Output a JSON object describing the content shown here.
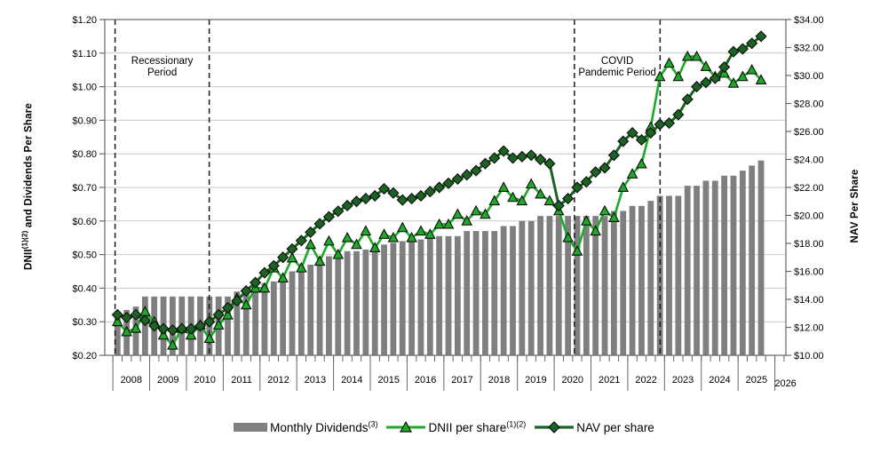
{
  "left_axis": {
    "title_prefix": "DNII",
    "title_sup": "(1)(2)",
    "title_suffix": " and Dividends Per Share",
    "tick_labels": [
      "$1.20",
      "$1.10",
      "$1.00",
      "$0.90",
      "$0.80",
      "$0.70",
      "$0.60",
      "$0.50",
      "$0.40",
      "$0.30",
      "$0.20"
    ]
  },
  "right_axis": {
    "title": "NAV Per Share",
    "tick_labels": [
      "$34.00",
      "$32.00",
      "$30.00",
      "$28.00",
      "$26.00",
      "$24.00",
      "$22.00",
      "$20.00",
      "$18.00",
      "$16.00",
      "$14.00",
      "$12.00",
      "$10.00"
    ]
  },
  "x_axis": {
    "year_labels": [
      "2008",
      "2009",
      "2010",
      "2011",
      "2012",
      "2013",
      "2014",
      "2015",
      "2016",
      "2017",
      "2018",
      "2019",
      "2020",
      "2021",
      "2022",
      "2023",
      "2024",
      "2025",
      "2026"
    ]
  },
  "annotations": [
    {
      "lines": [
        "Recessionary",
        "Period"
      ],
      "start_year": 2008.06,
      "end_year": 2010.62
    },
    {
      "lines": [
        "COVID",
        "Pandemic Period"
      ],
      "start_year": 2020.55,
      "end_year": 2022.88
    }
  ],
  "legend": {
    "items": [
      {
        "label": "Monthly Dividends",
        "sup": "(3)"
      },
      {
        "label": "DNII per share",
        "sup": "(1)(2)"
      },
      {
        "label": "NAV per share",
        "sup": ""
      }
    ]
  },
  "colors": {
    "bars": "#7f7f7f",
    "dnii_line": "#1eaa28",
    "nav_line": "#1b6322",
    "gridline": "#c9c9c9",
    "axis": "#666666",
    "dashed_line": "#1a1a1a",
    "text": "#000000"
  },
  "chart_data": {
    "type": "bar+line combo, dual axis",
    "frequency": "quarterly",
    "left_axis_range": [
      0.2,
      1.2,
      0.1
    ],
    "right_axis_range": [
      10,
      34,
      2
    ],
    "x_domain_years": [
      2007.78,
      2026.3
    ],
    "quarters": [
      "2008 Q1",
      "2008 Q2",
      "2008 Q3",
      "2008 Q4",
      "2009 Q1",
      "2009 Q2",
      "2009 Q3",
      "2009 Q4",
      "2010 Q1",
      "2010 Q2",
      "2010 Q3",
      "2010 Q4",
      "2011 Q1",
      "2011 Q2",
      "2011 Q3",
      "2011 Q4",
      "2012 Q1",
      "2012 Q2",
      "2012 Q3",
      "2012 Q4",
      "2013 Q1",
      "2013 Q2",
      "2013 Q3",
      "2013 Q4",
      "2014 Q1",
      "2014 Q2",
      "2014 Q3",
      "2014 Q4",
      "2015 Q1",
      "2015 Q2",
      "2015 Q3",
      "2015 Q4",
      "2016 Q1",
      "2016 Q2",
      "2016 Q3",
      "2016 Q4",
      "2017 Q1",
      "2017 Q2",
      "2017 Q3",
      "2017 Q4",
      "2018 Q1",
      "2018 Q2",
      "2018 Q3",
      "2018 Q4",
      "2019 Q1",
      "2019 Q2",
      "2019 Q3",
      "2019 Q4",
      "2020 Q1",
      "2020 Q2",
      "2020 Q3",
      "2020 Q4",
      "2021 Q1",
      "2021 Q2",
      "2021 Q3",
      "2021 Q4",
      "2022 Q1",
      "2022 Q2",
      "2022 Q3",
      "2022 Q4",
      "2023 Q1",
      "2023 Q2",
      "2023 Q3",
      "2023 Q4",
      "2024 Q1",
      "2024 Q2",
      "2024 Q3",
      "2024 Q4",
      "2025 Q1",
      "2025 Q2",
      "2025 Q3"
    ],
    "series": [
      {
        "name": "Monthly Dividends",
        "footnote": "(3)",
        "type": "bar",
        "axis": "left",
        "values": [
          0.33,
          0.335,
          0.345,
          0.375,
          0.375,
          0.375,
          0.375,
          0.375,
          0.375,
          0.375,
          0.375,
          0.375,
          0.375,
          0.39,
          0.4,
          0.405,
          0.415,
          0.42,
          0.435,
          0.45,
          0.465,
          0.47,
          0.48,
          0.495,
          0.495,
          0.51,
          0.51,
          0.515,
          0.525,
          0.53,
          0.535,
          0.54,
          0.545,
          0.545,
          0.555,
          0.555,
          0.555,
          0.555,
          0.57,
          0.57,
          0.57,
          0.57,
          0.585,
          0.585,
          0.6,
          0.6,
          0.615,
          0.615,
          0.615,
          0.615,
          0.615,
          0.615,
          0.615,
          0.615,
          0.63,
          0.63,
          0.645,
          0.645,
          0.66,
          0.675,
          0.675,
          0.675,
          0.705,
          0.705,
          0.72,
          0.72,
          0.735,
          0.735,
          0.75,
          0.765,
          0.78
        ]
      },
      {
        "name": "DNII per share",
        "footnote": "(1)(2)",
        "type": "line",
        "marker": "triangle",
        "axis": "left",
        "values": [
          0.3,
          0.27,
          0.28,
          0.33,
          0.3,
          0.26,
          0.23,
          0.28,
          0.26,
          0.29,
          0.25,
          0.29,
          0.32,
          0.37,
          0.35,
          0.4,
          0.4,
          0.46,
          0.43,
          0.49,
          0.46,
          0.53,
          0.48,
          0.54,
          0.5,
          0.55,
          0.53,
          0.57,
          0.52,
          0.56,
          0.55,
          0.58,
          0.55,
          0.57,
          0.56,
          0.59,
          0.59,
          0.62,
          0.6,
          0.63,
          0.62,
          0.66,
          0.7,
          0.67,
          0.66,
          0.71,
          0.68,
          0.66,
          0.63,
          0.55,
          0.51,
          0.6,
          0.57,
          0.63,
          0.61,
          0.7,
          0.74,
          0.77,
          0.88,
          1.03,
          1.07,
          1.03,
          1.09,
          1.09,
          1.06,
          1.03,
          1.04,
          1.01,
          1.03,
          1.05,
          1.02
        ]
      },
      {
        "name": "NAV per share",
        "footnote": "",
        "type": "line",
        "marker": "diamond",
        "axis": "right",
        "values": [
          12.9,
          12.7,
          12.9,
          12.5,
          12.1,
          11.9,
          11.8,
          11.9,
          11.9,
          12.1,
          12.4,
          12.9,
          13.4,
          13.9,
          14.6,
          15.2,
          15.9,
          16.4,
          17.0,
          17.6,
          18.2,
          18.8,
          19.4,
          19.9,
          20.3,
          20.7,
          21.0,
          21.2,
          21.4,
          21.9,
          21.6,
          21.1,
          21.2,
          21.4,
          21.7,
          22.0,
          22.3,
          22.6,
          22.9,
          23.2,
          23.7,
          24.1,
          24.6,
          24.1,
          24.2,
          24.3,
          24.0,
          23.7,
          20.7,
          21.2,
          22.0,
          22.4,
          23.1,
          23.4,
          24.3,
          25.3,
          25.9,
          25.4,
          25.9,
          26.5,
          26.6,
          27.2,
          28.3,
          29.2,
          29.5,
          29.8,
          30.6,
          31.7,
          31.9,
          32.3,
          32.8
        ]
      }
    ]
  }
}
